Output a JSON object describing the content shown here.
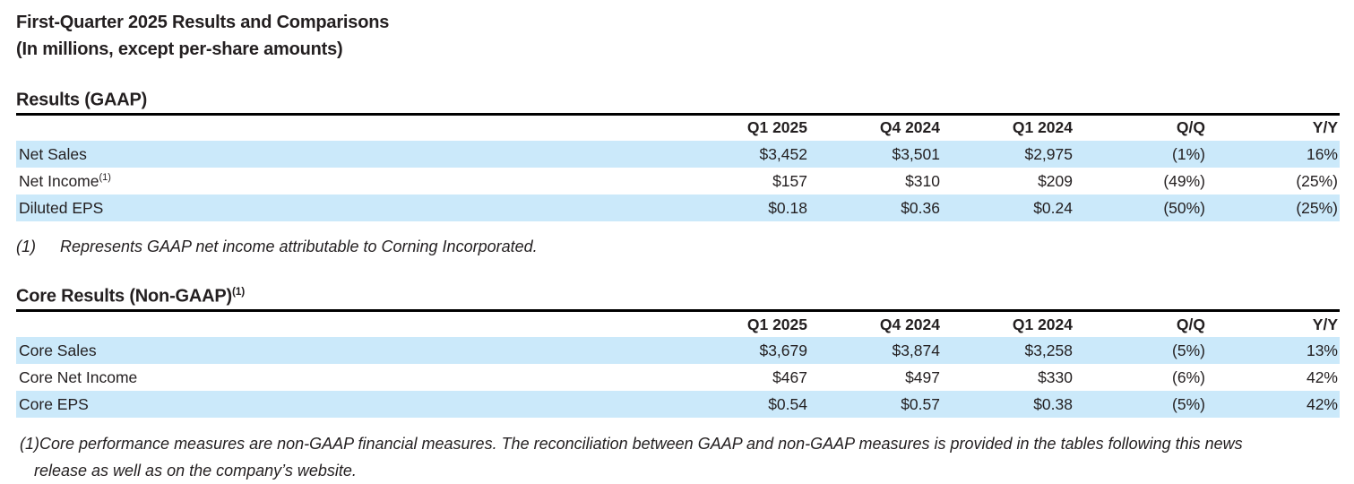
{
  "header": {
    "title": "First-Quarter 2025 Results and Comparisons",
    "subtitle": "(In millions, except per-share amounts)"
  },
  "gaap": {
    "heading": "Results (GAAP)",
    "heading_sup": "",
    "columns": [
      "Q1 2025",
      "Q4 2024",
      "Q1 2024",
      "Q/Q",
      "Y/Y"
    ],
    "rows": [
      {
        "label": "Net Sales",
        "sup": "",
        "values": [
          "$3,452",
          "$3,501",
          "$2,975",
          "(1%)",
          "16%"
        ]
      },
      {
        "label": "Net Income",
        "sup": "(1)",
        "values": [
          "$157",
          "$310",
          "$209",
          "(49%)",
          "(25%)"
        ]
      },
      {
        "label": "Diluted EPS",
        "sup": "",
        "values": [
          "$0.18",
          "$0.36",
          "$0.24",
          "(50%)",
          "(25%)"
        ]
      }
    ],
    "footnote_marker": "(1)",
    "footnote_text": "Represents GAAP net income attributable to Corning Incorporated."
  },
  "core": {
    "heading": "Core Results (Non-GAAP)",
    "heading_sup": "(1)",
    "columns": [
      "Q1 2025",
      "Q4 2024",
      "Q1 2024",
      "Q/Q",
      "Y/Y"
    ],
    "rows": [
      {
        "label": "Core Sales",
        "sup": "",
        "values": [
          "$3,679",
          "$3,874",
          "$3,258",
          "(5%)",
          "13%"
        ]
      },
      {
        "label": "Core Net Income",
        "sup": "",
        "values": [
          "$467",
          "$497",
          "$330",
          "(6%)",
          "42%"
        ]
      },
      {
        "label": "Core EPS",
        "sup": "",
        "values": [
          "$0.54",
          "$0.57",
          "$0.38",
          "(5%)",
          "42%"
        ]
      }
    ]
  },
  "bottom_footnote": {
    "line1": "(1)Core performance measures are non-GAAP financial measures. The reconciliation between GAAP and non-GAAP measures is provided in the tables following this news",
    "line2": "release as well as on the company’s website."
  },
  "colors": {
    "stripe": "#cbe9fa",
    "text": "#231f20",
    "rule": "#000000"
  }
}
